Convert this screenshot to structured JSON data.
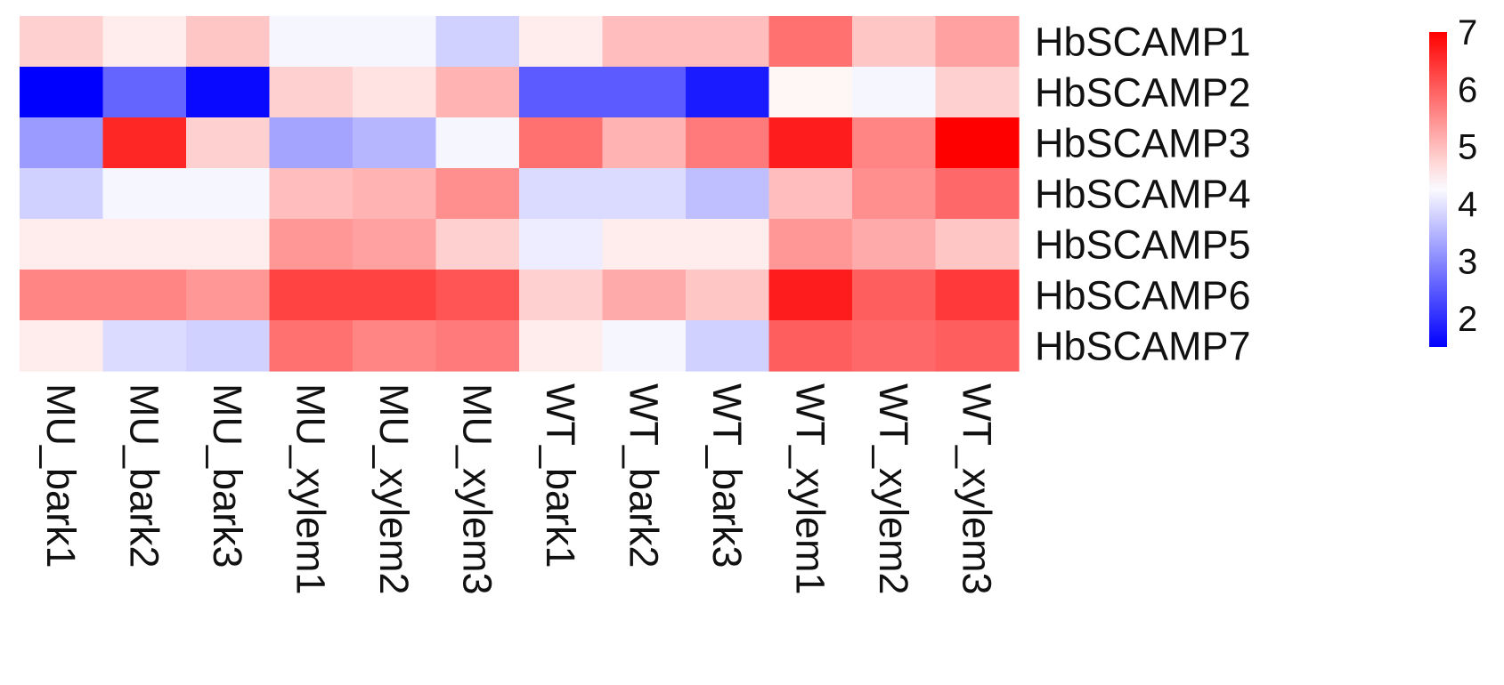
{
  "chart_data": {
    "type": "heatmap",
    "rows": [
      "HbSCAMP1",
      "HbSCAMP2",
      "HbSCAMP3",
      "HbSCAMP4",
      "HbSCAMP5",
      "HbSCAMP6",
      "HbSCAMP7"
    ],
    "columns": [
      "MU_bark1",
      "MU_bark2",
      "MU_bark3",
      "MU_xylem1",
      "MU_xylem2",
      "MU_xylem3",
      "WT_bark1",
      "WT_bark2",
      "WT_bark3",
      "WT_xylem1",
      "WT_xylem2",
      "WT_xylem3"
    ],
    "values": [
      [
        4.8,
        4.5,
        4.9,
        4.2,
        4.2,
        3.8,
        4.5,
        5.0,
        5.0,
        5.8,
        4.9,
        5.3
      ],
      [
        1.5,
        2.6,
        1.6,
        4.8,
        4.6,
        5.1,
        2.5,
        2.5,
        1.8,
        4.4,
        4.2,
        4.8
      ],
      [
        3.2,
        6.6,
        4.8,
        3.3,
        3.5,
        4.2,
        5.8,
        5.1,
        5.7,
        6.7,
        5.6,
        7.0
      ],
      [
        3.8,
        4.2,
        4.2,
        5.0,
        5.1,
        5.5,
        3.9,
        3.9,
        3.6,
        5.0,
        5.5,
        5.9
      ],
      [
        4.5,
        4.5,
        4.5,
        5.4,
        5.3,
        4.8,
        4.1,
        4.5,
        4.5,
        5.4,
        5.2,
        4.9
      ],
      [
        5.6,
        5.6,
        5.4,
        6.3,
        6.3,
        6.1,
        4.8,
        5.2,
        4.9,
        6.7,
        6.0,
        6.4
      ],
      [
        4.5,
        3.9,
        3.8,
        5.8,
        5.6,
        5.7,
        4.5,
        4.2,
        3.8,
        6.0,
        5.9,
        6.0
      ]
    ],
    "color_scale": {
      "min": 1.5,
      "mid": 4.3,
      "max": 7.0,
      "low_color": "#0000ff",
      "mid_color": "#ffffff",
      "high_color": "#ff0000"
    },
    "legend": {
      "ticks": [
        2,
        3,
        4,
        5,
        6,
        7
      ],
      "placement": "right"
    }
  }
}
